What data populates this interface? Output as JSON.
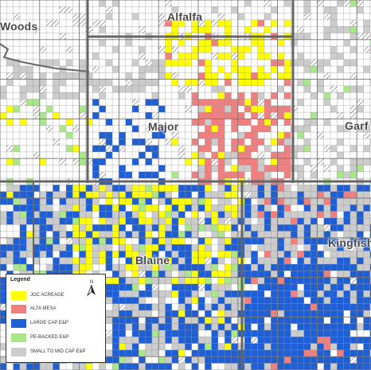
{
  "counties": [
    {
      "name": "Woods"
    },
    {
      "name": "Alfalfa"
    },
    {
      "name": "Major"
    },
    {
      "name": "Garf"
    },
    {
      "name": "Blaine"
    },
    {
      "name": "Kingfish"
    }
  ],
  "legend": {
    "title": "Legend",
    "north": "N",
    "items": [
      {
        "label": "JOC ACREAGE",
        "color": "#ffff00"
      },
      {
        "label": "ALTA MESA",
        "color": "#f08080"
      },
      {
        "label": "LARGE CAP E&P",
        "color": "#1f5fd6"
      },
      {
        "label": "PE-BACKED E&P",
        "color": "#a8e889"
      },
      {
        "label": "SMALL TO MID CAP E&P",
        "color": "#cccccc"
      }
    ]
  },
  "colors": {
    "grid": "#8f8f8f",
    "county_border": "#666666",
    "background": "#ffffff",
    "hatch": "#555555"
  }
}
